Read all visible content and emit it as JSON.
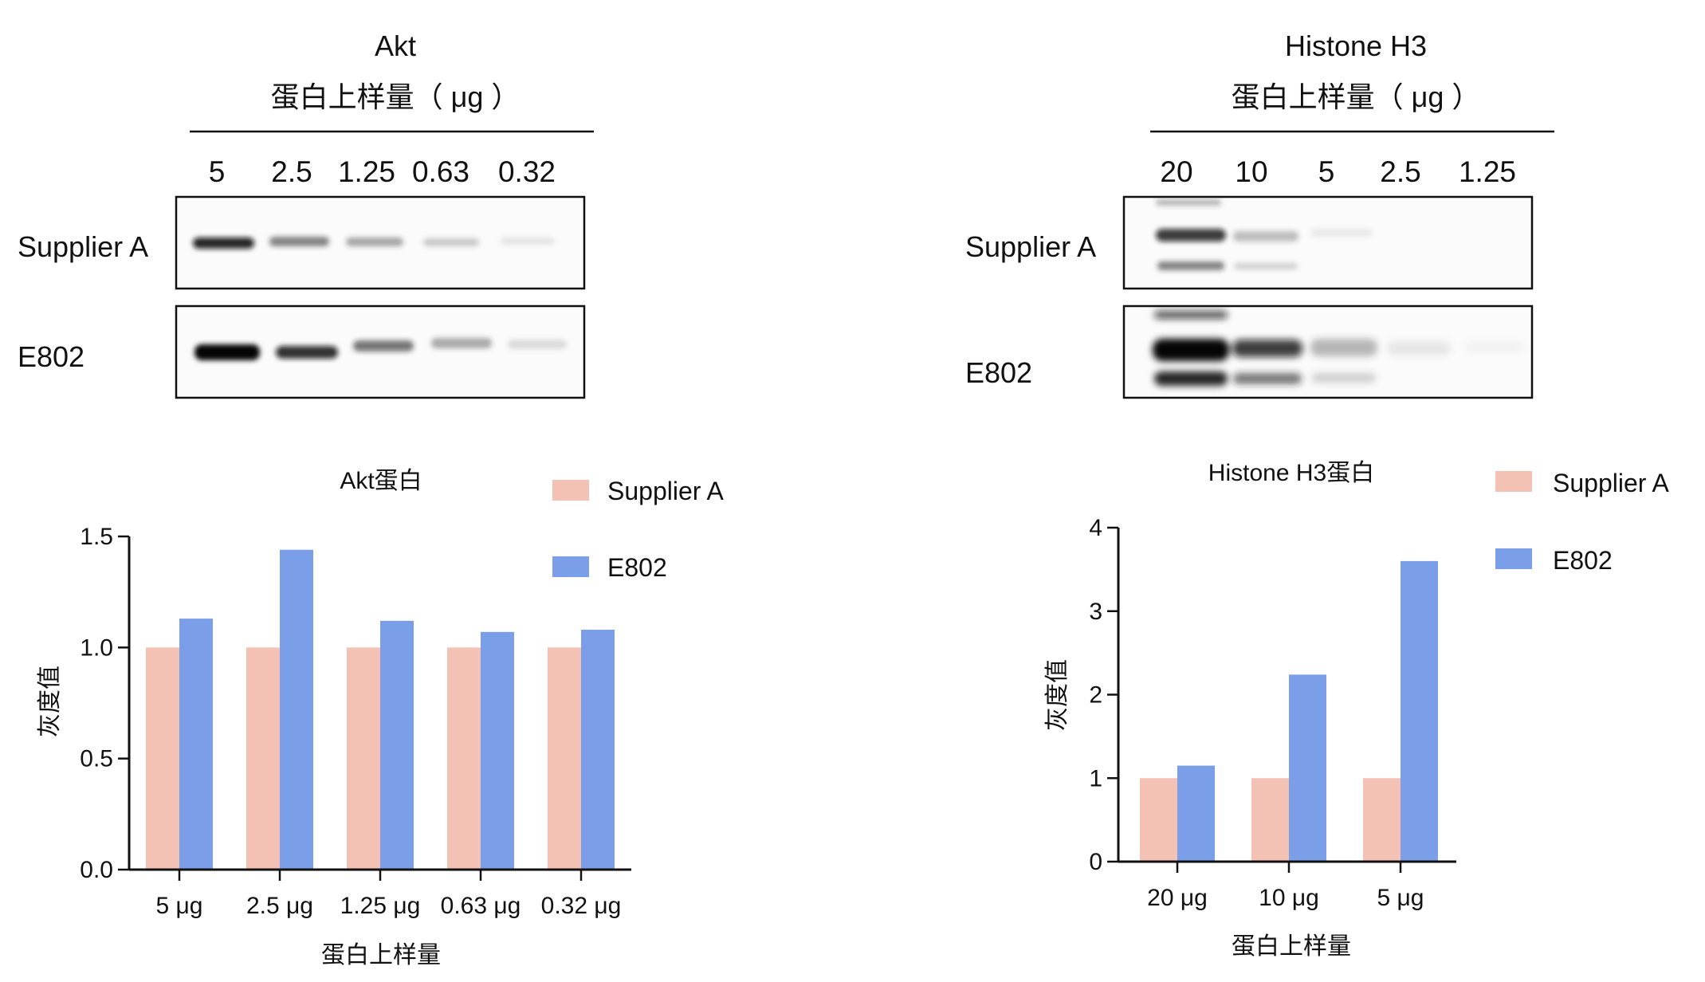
{
  "blot_left": {
    "title": "Akt",
    "subtitle": "蛋白上样量（ μg ）",
    "lanes": [
      "5",
      "2.5",
      "1.25",
      "0.63",
      "0.32"
    ],
    "rows": [
      "Supplier A",
      "E802"
    ]
  },
  "blot_right": {
    "title": "Histone H3",
    "subtitle": "蛋白上样量（ μg ）",
    "lanes": [
      "20",
      "10",
      "5",
      "2.5",
      "1.25"
    ],
    "rows": [
      "Supplier A",
      "E802"
    ]
  },
  "colors": {
    "supplier_a": "#f4c1b5",
    "e802": "#7a9ee8",
    "axis": "#111111"
  },
  "chart_data": [
    {
      "type": "bar",
      "title": "Akt蛋白",
      "xlabel": "蛋白上样量",
      "ylabel": "灰度值",
      "categories": [
        "5 μg",
        "2.5 μg",
        "1.25 μg",
        "0.63 μg",
        "0.32 μg"
      ],
      "ylim": [
        0,
        1.5
      ],
      "yticks": [
        "0.0",
        "0.5",
        "1.0",
        "1.5"
      ],
      "legend_placement": "top-right",
      "series": [
        {
          "name": "Supplier A",
          "values": [
            1.0,
            1.0,
            1.0,
            1.0,
            1.0
          ]
        },
        {
          "name": "E802",
          "values": [
            1.13,
            1.44,
            1.12,
            1.07,
            1.08
          ]
        }
      ]
    },
    {
      "type": "bar",
      "title": "Histone H3蛋白",
      "xlabel": "蛋白上样量",
      "ylabel": "灰度值",
      "categories": [
        "20 μg",
        "10 μg",
        "5 μg"
      ],
      "ylim": [
        0,
        4
      ],
      "yticks": [
        "0",
        "1",
        "2",
        "3",
        "4"
      ],
      "legend_placement": "top-right",
      "series": [
        {
          "name": "Supplier A",
          "values": [
            1.0,
            1.0,
            1.0
          ]
        },
        {
          "name": "E802",
          "values": [
            1.15,
            2.24,
            3.6
          ]
        }
      ]
    }
  ]
}
